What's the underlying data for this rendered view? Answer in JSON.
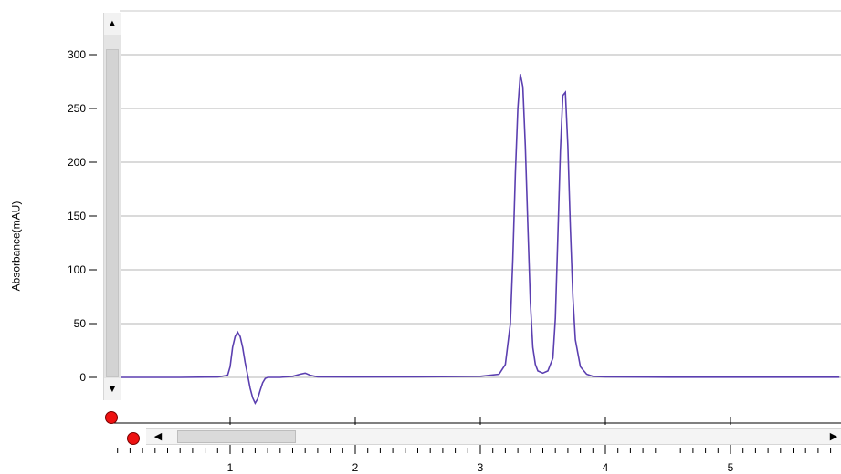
{
  "chart_data": {
    "type": "line",
    "title": "",
    "xlabel": "",
    "ylabel": "Absorbance(mAU)",
    "xlim": [
      0.0,
      5.87
    ],
    "ylim": [
      -25,
      300
    ],
    "yticks": [
      0,
      50,
      100,
      150,
      200,
      250,
      300
    ],
    "xticks": [
      1,
      2,
      3,
      4,
      5
    ],
    "grid": true,
    "series": [
      {
        "color": "#5b3fb0",
        "x": [
          0.0,
          0.3,
          0.6,
          0.9,
          0.98,
          1.0,
          1.02,
          1.04,
          1.06,
          1.08,
          1.1,
          1.12,
          1.14,
          1.16,
          1.18,
          1.2,
          1.22,
          1.24,
          1.26,
          1.28,
          1.3,
          1.34,
          1.4,
          1.5,
          1.56,
          1.6,
          1.64,
          1.7,
          2.0,
          2.5,
          3.0,
          3.15,
          3.2,
          3.24,
          3.26,
          3.28,
          3.3,
          3.32,
          3.34,
          3.36,
          3.38,
          3.4,
          3.42,
          3.44,
          3.46,
          3.5,
          3.54,
          3.58,
          3.6,
          3.62,
          3.64,
          3.66,
          3.68,
          3.7,
          3.72,
          3.74,
          3.76,
          3.8,
          3.85,
          3.9,
          4.0,
          4.5,
          5.0,
          5.5,
          5.87
        ],
        "y": [
          0,
          0,
          0,
          0.3,
          2,
          10,
          28,
          38,
          42,
          38,
          28,
          14,
          2,
          -10,
          -19,
          -24,
          -20,
          -12,
          -5,
          -1,
          0,
          0,
          0,
          1,
          3,
          4,
          2,
          0.5,
          0.3,
          0.5,
          1,
          3,
          12,
          50,
          110,
          190,
          250,
          282,
          270,
          215,
          140,
          70,
          28,
          12,
          6,
          4,
          6,
          18,
          55,
          130,
          210,
          262,
          265,
          215,
          140,
          75,
          35,
          10,
          3,
          1,
          0.4,
          0.2,
          0.2,
          0.2,
          0.2
        ]
      }
    ]
  }
}
